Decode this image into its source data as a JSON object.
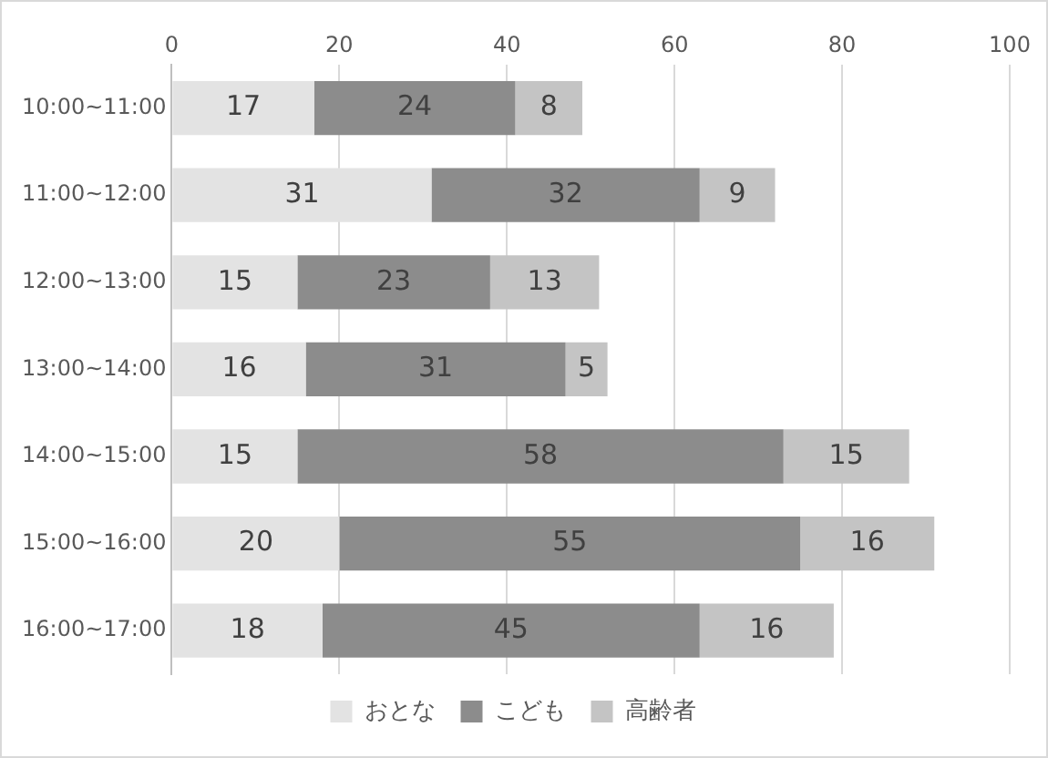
{
  "chart_data": {
    "type": "bar",
    "orientation": "horizontal",
    "stacked": true,
    "categories": [
      "10:00~11:00",
      "11:00~12:00",
      "12:00~13:00",
      "13:00~14:00",
      "14:00~15:00",
      "15:00~16:00",
      "16:00~17:00"
    ],
    "series": [
      {
        "name": "おとな",
        "color": "#e3e3e3",
        "values": [
          17,
          31,
          15,
          16,
          15,
          20,
          18
        ]
      },
      {
        "name": "こども",
        "color": "#8c8c8c",
        "values": [
          24,
          32,
          23,
          31,
          58,
          55,
          45
        ]
      },
      {
        "name": "高齢者",
        "color": "#c4c4c4",
        "values": [
          8,
          9,
          13,
          5,
          15,
          16,
          16
        ]
      }
    ],
    "xlim": [
      0,
      100
    ],
    "xticks": [
      0,
      20,
      40,
      60,
      80,
      100
    ],
    "grid": "x",
    "legend": "bottom",
    "data_labels": true
  }
}
